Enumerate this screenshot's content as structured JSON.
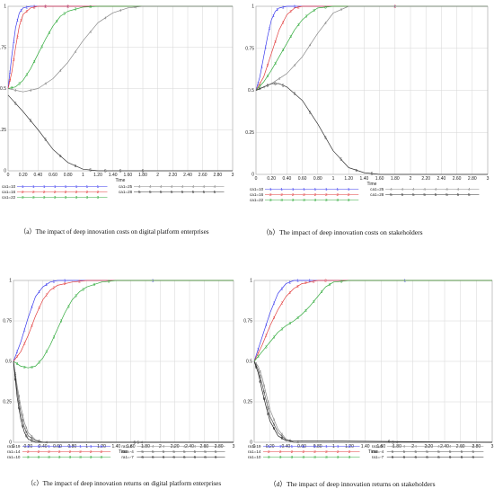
{
  "charts": [
    {
      "caption": "（a）The impact of deep innovation costs on digital platform enterprises",
      "xlabel": "Time",
      "chart_data": {
        "type": "line",
        "xlim": [
          0,
          3
        ],
        "ylim": [
          0,
          1
        ],
        "x_ticks": [
          "0",
          "0.20",
          "0.40",
          "0.60",
          "0.80",
          "1",
          "1.20",
          "1.40",
          "1.60",
          "1.80",
          "2",
          "2.20",
          "2.40",
          "2.60",
          "2.80",
          "3"
        ],
        "y_ticks": [
          "0",
          "0.25",
          "0.5",
          "0.75",
          "1"
        ],
        "grid": true,
        "legend_position": "bottom",
        "series": [
          {
            "name": "ca1=10",
            "color": "#3a3aee",
            "x": [
              0,
              0.05,
              0.1,
              0.15,
              0.2,
              0.3,
              0.4,
              0.6,
              1,
              3
            ],
            "values": [
              0.5,
              0.7,
              0.87,
              0.96,
              0.99,
              1,
              1,
              1,
              1,
              1
            ]
          },
          {
            "name": "ca1=16",
            "color": "#e23c3c",
            "x": [
              0,
              0.05,
              0.1,
              0.15,
              0.2,
              0.3,
              0.4,
              0.6,
              1,
              3
            ],
            "values": [
              0.5,
              0.6,
              0.75,
              0.88,
              0.95,
              0.99,
              1,
              1,
              1,
              1
            ]
          },
          {
            "name": "ca1=22",
            "color": "#2faa3a",
            "x": [
              0,
              0.1,
              0.2,
              0.3,
              0.4,
              0.5,
              0.6,
              0.7,
              0.8,
              1,
              1.2,
              3
            ],
            "values": [
              0.5,
              0.51,
              0.55,
              0.62,
              0.71,
              0.8,
              0.88,
              0.94,
              0.97,
              0.995,
              1,
              1
            ]
          },
          {
            "name": "ca1=25",
            "color": "#888888",
            "x": [
              0,
              0.2,
              0.4,
              0.6,
              0.8,
              1,
              1.2,
              1.4,
              1.6,
              1.8,
              3
            ],
            "values": [
              0.5,
              0.48,
              0.5,
              0.56,
              0.66,
              0.79,
              0.9,
              0.96,
              0.99,
              1,
              1
            ]
          },
          {
            "name": "ca1=28",
            "color": "#333333",
            "x": [
              0,
              0.2,
              0.4,
              0.6,
              0.8,
              1,
              1.2,
              1.4,
              1.6,
              2,
              3
            ],
            "values": [
              0.46,
              0.36,
              0.25,
              0.13,
              0.05,
              0.01,
              0,
              0,
              0,
              0,
              0
            ]
          }
        ]
      }
    },
    {
      "caption": "（b）The impact of deep innovation costs on stakeholders",
      "xlabel": "Time",
      "chart_data": {
        "type": "line",
        "xlim": [
          0,
          3
        ],
        "ylim": [
          0,
          1
        ],
        "x_ticks": [
          "0",
          "0.20",
          "0.40",
          "0.60",
          "0.80",
          "1",
          "1.20",
          "1.40",
          "1.60",
          "1.80",
          "2",
          "2.20",
          "2.40",
          "2.60",
          "2.80",
          "3"
        ],
        "y_ticks": [
          "0",
          "0.25",
          "0.5",
          "0.75",
          "1"
        ],
        "grid": true,
        "legend_position": "bottom",
        "series": [
          {
            "name": "ca1=10",
            "color": "#3a3aee",
            "x": [
              0,
              0.05,
              0.1,
              0.15,
              0.2,
              0.25,
              0.3,
              0.4,
              0.6,
              3
            ],
            "values": [
              0.5,
              0.58,
              0.7,
              0.82,
              0.92,
              0.97,
              0.99,
              1,
              1,
              1
            ]
          },
          {
            "name": "ca1=16",
            "color": "#e23c3c",
            "x": [
              0,
              0.1,
              0.2,
              0.3,
              0.4,
              0.5,
              0.6,
              3
            ],
            "values": [
              0.5,
              0.58,
              0.72,
              0.86,
              0.95,
              0.99,
              1,
              1
            ]
          },
          {
            "name": "ca1=22",
            "color": "#2faa3a",
            "x": [
              0,
              0.1,
              0.2,
              0.3,
              0.4,
              0.5,
              0.6,
              0.7,
              0.8,
              1,
              3
            ],
            "values": [
              0.5,
              0.55,
              0.62,
              0.7,
              0.78,
              0.86,
              0.92,
              0.96,
              0.99,
              1,
              1
            ]
          },
          {
            "name": "ca1=25",
            "color": "#888888",
            "x": [
              0,
              0.2,
              0.4,
              0.6,
              0.8,
              1,
              1.2,
              3
            ],
            "values": [
              0.5,
              0.54,
              0.6,
              0.7,
              0.84,
              0.96,
              1,
              1
            ]
          },
          {
            "name": "ca1=28",
            "color": "#333333",
            "x": [
              0,
              0.1,
              0.2,
              0.3,
              0.4,
              0.6,
              0.8,
              1,
              1.2,
              1.4,
              1.6,
              3
            ],
            "values": [
              0.5,
              0.52,
              0.54,
              0.54,
              0.52,
              0.44,
              0.3,
              0.14,
              0.04,
              0.01,
              0,
              0
            ]
          }
        ]
      }
    },
    {
      "caption": "（c）The impact of deep innovation returns on digital platform enterprises",
      "xlabel": "Time",
      "chart_data": {
        "type": "line",
        "xlim": [
          0,
          3
        ],
        "ylim": [
          0,
          1
        ],
        "x_ticks": [
          "0",
          "0.20",
          "0.40",
          "0.60",
          "0.80",
          "1",
          "1.20",
          "1.40",
          "1.60",
          "1.80",
          "2",
          "2.20",
          "2.40",
          "2.60",
          "2.80",
          "3"
        ],
        "y_ticks": [
          "0",
          "0.25",
          "0.5",
          "0.75",
          "1"
        ],
        "grid": true,
        "legend_position": "bottom",
        "series": [
          {
            "name": "ra1=19",
            "color": "#3a3aee",
            "x": [
              0,
              0.1,
              0.2,
              0.3,
              0.4,
              0.5,
              0.6,
              0.8,
              3
            ],
            "values": [
              0.5,
              0.62,
              0.77,
              0.9,
              0.96,
              0.99,
              1,
              1,
              1
            ]
          },
          {
            "name": "ra1=14",
            "color": "#e23c3c",
            "x": [
              0,
              0.1,
              0.2,
              0.3,
              0.4,
              0.5,
              0.6,
              0.8,
              1,
              3
            ],
            "values": [
              0.5,
              0.56,
              0.66,
              0.78,
              0.88,
              0.94,
              0.97,
              0.99,
              1,
              1
            ]
          },
          {
            "name": "ra1=10",
            "color": "#2faa3a",
            "x": [
              0,
              0.1,
              0.2,
              0.3,
              0.4,
              0.5,
              0.6,
              0.7,
              0.8,
              0.9,
              1,
              1.2,
              1.4,
              3
            ],
            "values": [
              0.5,
              0.47,
              0.46,
              0.47,
              0.52,
              0.6,
              0.7,
              0.8,
              0.88,
              0.93,
              0.96,
              0.99,
              1,
              1
            ]
          },
          {
            "name": "ra1=0",
            "color": "#888888",
            "x": [
              0,
              0.05,
              0.1,
              0.15,
              0.2,
              0.3,
              0.4,
              0.5,
              3
            ],
            "values": [
              0.5,
              0.35,
              0.22,
              0.12,
              0.06,
              0.015,
              0,
              0,
              0
            ]
          },
          {
            "name": "ra1=-4",
            "color": "#555555",
            "x": [
              0,
              0.05,
              0.1,
              0.15,
              0.2,
              0.3,
              0.4,
              3
            ],
            "values": [
              0.5,
              0.32,
              0.18,
              0.09,
              0.04,
              0.01,
              0,
              0
            ]
          },
          {
            "name": "ra1=-7",
            "color": "#222222",
            "x": [
              0,
              0.05,
              0.1,
              0.15,
              0.2,
              0.3,
              3
            ],
            "values": [
              0.5,
              0.28,
              0.14,
              0.06,
              0.02,
              0,
              0
            ]
          }
        ]
      }
    },
    {
      "caption": "（d）The impact of deep innovation returns on stakeholders",
      "xlabel": "Time",
      "chart_data": {
        "type": "line",
        "xlim": [
          0,
          3
        ],
        "ylim": [
          0,
          1
        ],
        "x_ticks": [
          "0",
          "0.20",
          "0.40",
          "0.60",
          "0.80",
          "1",
          "1.20",
          "1.40",
          "1.60",
          "1.80",
          "2",
          "2.20",
          "2.40",
          "2.60",
          "2.80",
          "3"
        ],
        "y_ticks": [
          "0",
          "0.25",
          "0.5",
          "0.75",
          "1"
        ],
        "grid": true,
        "legend_position": "bottom",
        "series": [
          {
            "name": "ra1=19",
            "color": "#3a3aee",
            "x": [
              0,
              0.1,
              0.2,
              0.3,
              0.4,
              0.5,
              0.6,
              0.8,
              3
            ],
            "values": [
              0.5,
              0.65,
              0.8,
              0.92,
              0.98,
              1,
              1,
              1,
              1
            ]
          },
          {
            "name": "ra1=14",
            "color": "#e23c3c",
            "x": [
              0,
              0.1,
              0.2,
              0.3,
              0.4,
              0.5,
              0.6,
              0.7,
              0.8,
              1,
              3
            ],
            "values": [
              0.5,
              0.6,
              0.72,
              0.82,
              0.9,
              0.95,
              0.98,
              0.99,
              1,
              1,
              1
            ]
          },
          {
            "name": "ra1=10",
            "color": "#2faa3a",
            "x": [
              0,
              0.1,
              0.2,
              0.3,
              0.4,
              0.5,
              0.6,
              0.7,
              0.8,
              0.9,
              1,
              1.2,
              3
            ],
            "values": [
              0.5,
              0.56,
              0.62,
              0.68,
              0.72,
              0.75,
              0.79,
              0.84,
              0.9,
              0.96,
              0.99,
              1,
              1
            ]
          },
          {
            "name": "ra1=0",
            "color": "#888888",
            "x": [
              0,
              0.05,
              0.1,
              0.15,
              0.2,
              0.3,
              0.4,
              0.5,
              0.6,
              3
            ],
            "values": [
              0.5,
              0.47,
              0.4,
              0.3,
              0.2,
              0.08,
              0.02,
              0,
              0,
              0
            ]
          },
          {
            "name": "ra1=-4",
            "color": "#555555",
            "x": [
              0,
              0.05,
              0.1,
              0.15,
              0.2,
              0.3,
              0.4,
              0.5,
              3
            ],
            "values": [
              0.5,
              0.45,
              0.36,
              0.26,
              0.16,
              0.06,
              0.015,
              0,
              0
            ]
          },
          {
            "name": "ra1=-7",
            "color": "#222222",
            "x": [
              0,
              0.05,
              0.1,
              0.15,
              0.2,
              0.3,
              0.4,
              3
            ],
            "values": [
              0.5,
              0.43,
              0.32,
              0.22,
              0.13,
              0.04,
              0.01,
              0
            ]
          }
        ]
      }
    }
  ]
}
